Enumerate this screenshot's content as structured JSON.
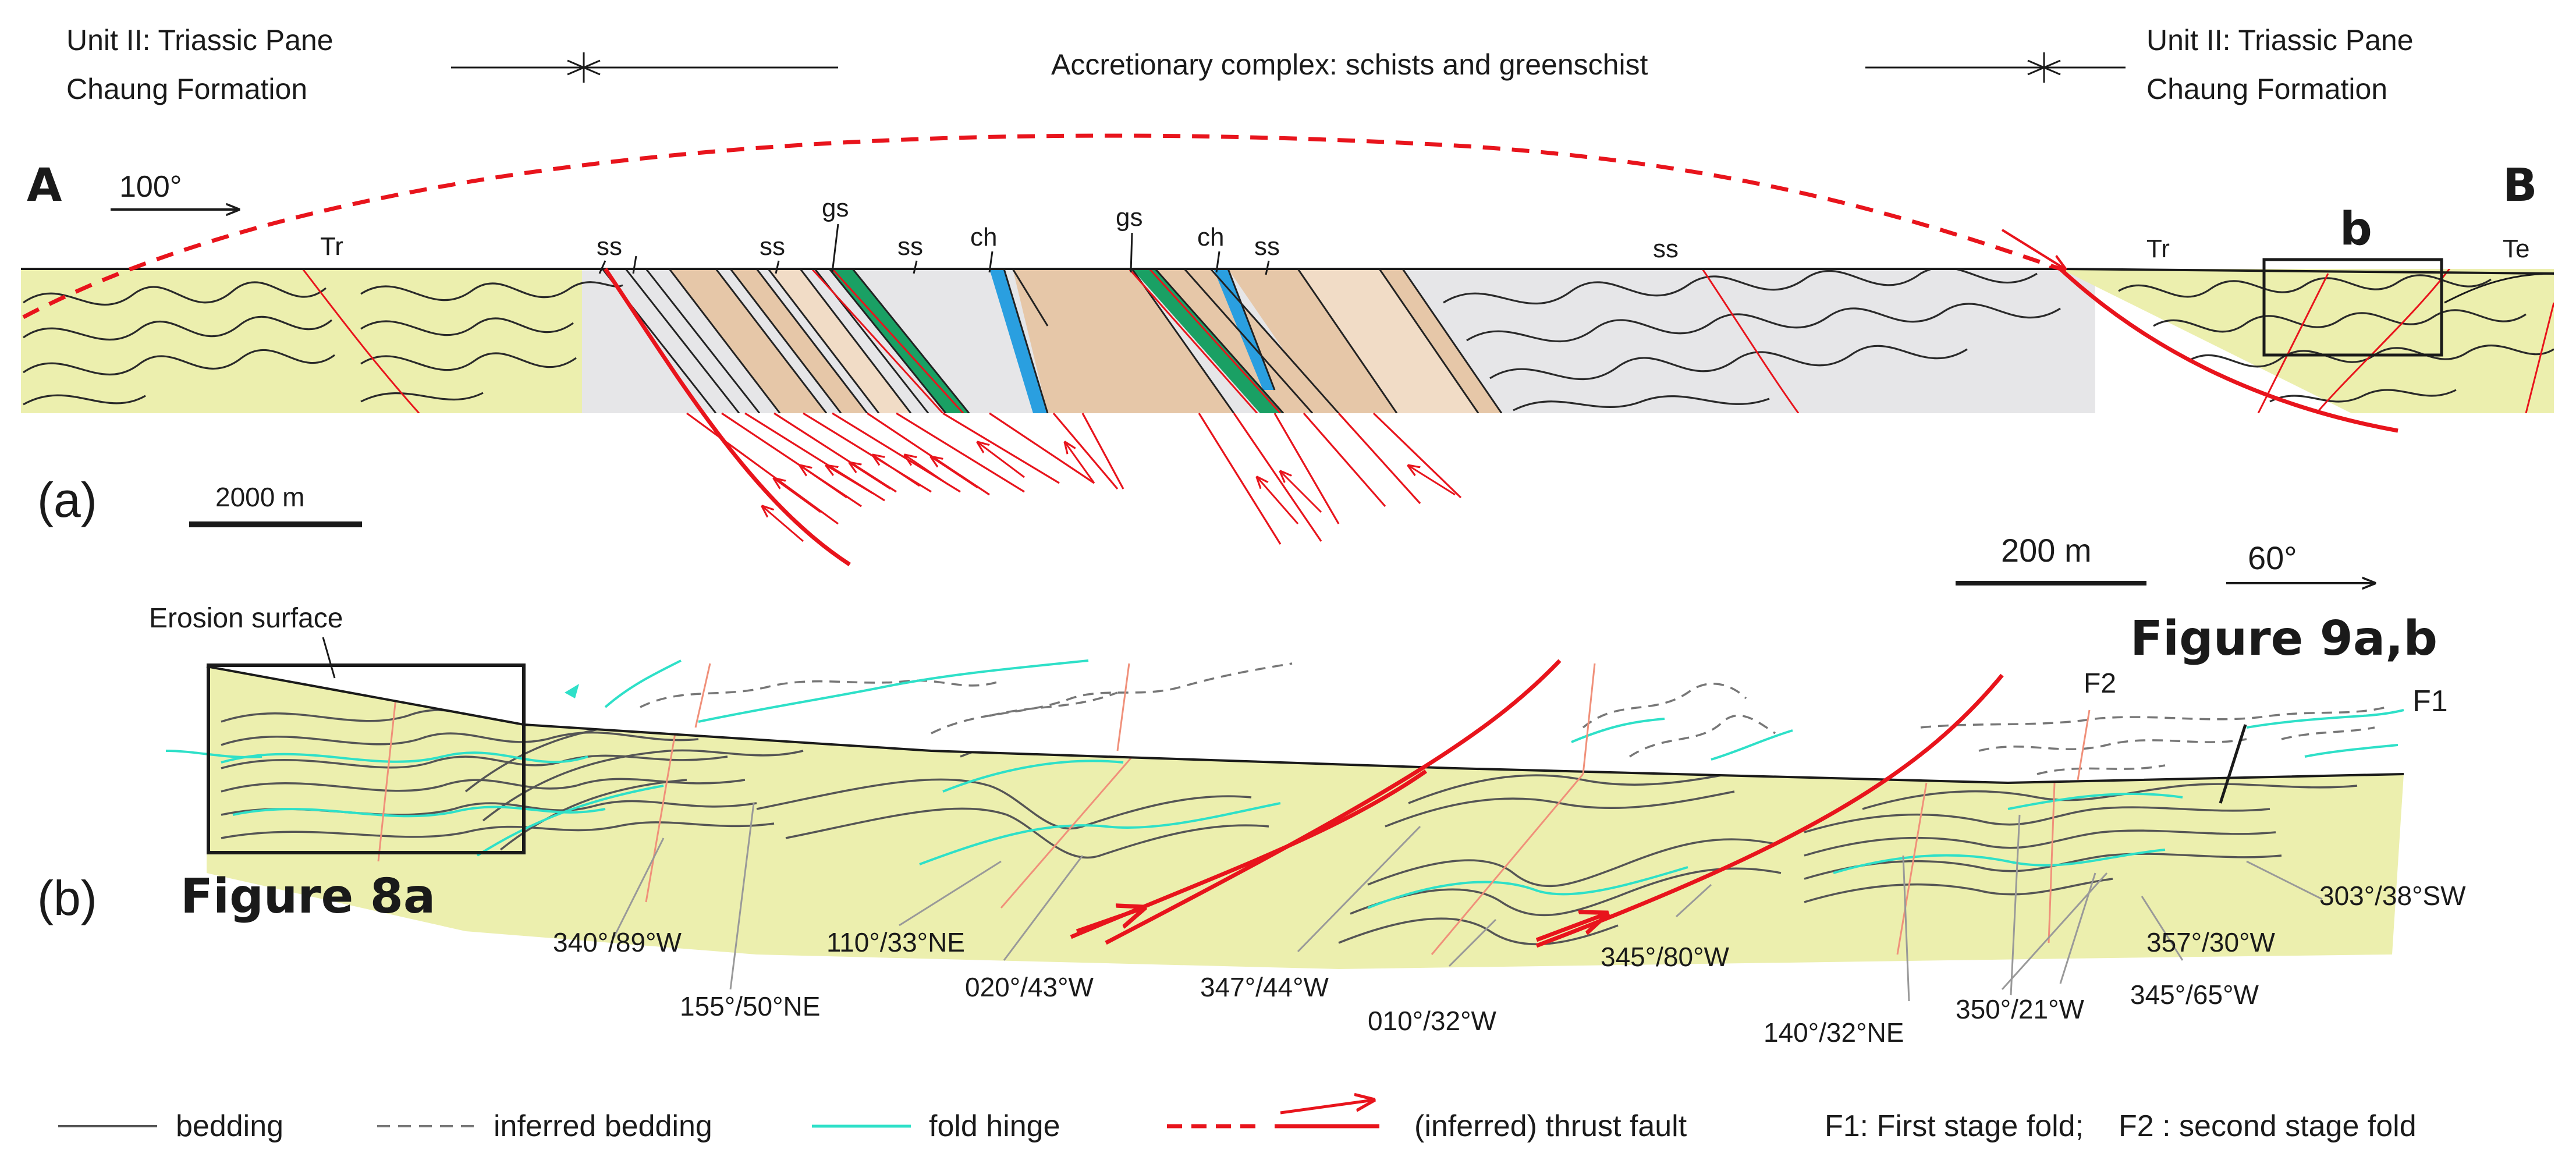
{
  "header": {
    "left_line1": "Unit II: Triassic Pane",
    "left_line2": "Chaung Formation",
    "center": "Accretionary complex: schists and greenschist",
    "right_line1": "Unit II: Triassic Pane",
    "right_line2": "Chaung Formation"
  },
  "section_a": {
    "end_left": "A",
    "end_right": "B",
    "azimuth": "100°",
    "panel_label": "(a)",
    "scale_label": "2000 m",
    "box_label": "b",
    "unit_labels": [
      "Tr",
      "ss",
      "ss",
      "gs",
      "ss",
      "ch",
      "gs",
      "ch",
      "ss",
      "ss",
      "Tr",
      "Te"
    ]
  },
  "section_b": {
    "panel_label": "(b)",
    "scale_label": "200 m",
    "azimuth": "60°",
    "erosion_label": "Erosion surface",
    "fig8_label": "Figure 8a",
    "fig9_label": "Figure 9a,b",
    "f2_label": "F2",
    "f1_label": "F1",
    "orientations": [
      "340°/89°W",
      "155°/50°NE",
      "110°/33°NE",
      "020°/43°W",
      "347°/44°W",
      "010°/32°W",
      "345°/80°W",
      "140°/32°NE",
      "350°/21°W",
      "345°/65°W",
      "357°/30°W",
      "303°/38°SW"
    ]
  },
  "legend": {
    "bedding": "bedding",
    "inferred_bedding": "inferred bedding",
    "fold_hinge": "fold hinge",
    "thrust": "(inferred) thrust fault",
    "f1_def": "F1: First stage fold;",
    "f2_def": "F2 : second stage fold"
  },
  "colors": {
    "triassic": "#ecefae",
    "schist_grey": "#e6e6e8",
    "tan": "#e6c7a8",
    "light_tan": "#f1dcc6",
    "greenschist": "#1aa064",
    "chert": "#2a9fe0",
    "fault": "#e8141c",
    "hinge": "#2ee0c8",
    "bedding": "#555555",
    "f2_trace": "#f0907a"
  }
}
